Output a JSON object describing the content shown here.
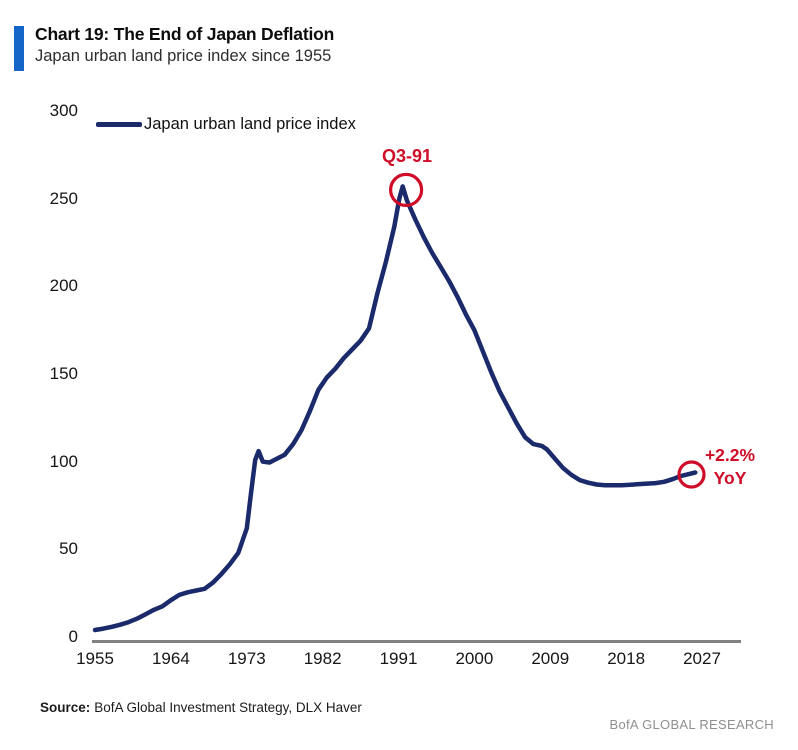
{
  "header": {
    "title": "Chart 19: The End of Japan Deflation",
    "subtitle": "Japan urban land price index since 1955"
  },
  "legend": {
    "label": "Japan urban land price index"
  },
  "callouts": {
    "peak_label": "Q3-91",
    "latest_line1": "+2.2%",
    "latest_line2": "YoY"
  },
  "footer": {
    "source_label": "Source:",
    "source_text": "BofA Global Investment Strategy, DLX Haver",
    "branding": "BofA GLOBAL RESEARCH"
  },
  "colors": {
    "line": "#1b2a6b",
    "accent_red": "#cf0d28",
    "header_bar_blue": "#1565c8",
    "axis_gray": "#828282"
  },
  "chart_data": {
    "type": "line",
    "title": "Chart 19: The End of Japan Deflation",
    "subtitle": "Japan urban land price index since 1955",
    "xlabel": "",
    "ylabel": "",
    "xlim": [
      1955,
      2027
    ],
    "ylim": [
      0,
      300
    ],
    "x_ticks": [
      1955,
      1964,
      1973,
      1982,
      1991,
      2000,
      2009,
      2018,
      2027
    ],
    "y_ticks": [
      0,
      50,
      100,
      150,
      200,
      250,
      300
    ],
    "grid": false,
    "legend_position": "top-left",
    "series": [
      {
        "name": "Japan urban land price index",
        "points": [
          [
            1955,
            4
          ],
          [
            1956,
            4.8
          ],
          [
            1957,
            5.8
          ],
          [
            1958,
            7
          ],
          [
            1959,
            8.5
          ],
          [
            1960,
            10.5
          ],
          [
            1961,
            13
          ],
          [
            1962,
            15.5
          ],
          [
            1963,
            17.5
          ],
          [
            1964,
            21
          ],
          [
            1965,
            24
          ],
          [
            1966,
            25.5
          ],
          [
            1967,
            26.5
          ],
          [
            1968,
            27.5
          ],
          [
            1969,
            31
          ],
          [
            1970,
            36
          ],
          [
            1971,
            41.5
          ],
          [
            1972,
            48
          ],
          [
            1973,
            62
          ],
          [
            1973.5,
            82
          ],
          [
            1974,
            101
          ],
          [
            1974.4,
            106
          ],
          [
            1974.9,
            100
          ],
          [
            1975.7,
            99.5
          ],
          [
            1976.5,
            101.5
          ],
          [
            1977.5,
            104
          ],
          [
            1978.5,
            110
          ],
          [
            1979.5,
            118
          ],
          [
            1980.5,
            129
          ],
          [
            1981.5,
            141
          ],
          [
            1982.5,
            148
          ],
          [
            1983.5,
            153
          ],
          [
            1984.5,
            159
          ],
          [
            1985.5,
            164
          ],
          [
            1986.5,
            169
          ],
          [
            1987.5,
            176
          ],
          [
            1988.5,
            196
          ],
          [
            1989.5,
            214
          ],
          [
            1990.5,
            234
          ],
          [
            1991.1,
            250
          ],
          [
            1991.5,
            257
          ],
          [
            1992,
            249
          ],
          [
            1993,
            238
          ],
          [
            1994,
            228
          ],
          [
            1995,
            219
          ],
          [
            1996,
            211
          ],
          [
            1997,
            203
          ],
          [
            1998,
            194
          ],
          [
            1999,
            184
          ],
          [
            2000,
            175
          ],
          [
            2001,
            163
          ],
          [
            2002,
            151
          ],
          [
            2003,
            140
          ],
          [
            2004,
            131
          ],
          [
            2005,
            122
          ],
          [
            2006,
            114
          ],
          [
            2007,
            110
          ],
          [
            2008,
            109
          ],
          [
            2008.6,
            107
          ],
          [
            2009.5,
            102
          ],
          [
            2010.5,
            96.5
          ],
          [
            2011.5,
            92.5
          ],
          [
            2012.5,
            89.5
          ],
          [
            2013.5,
            88
          ],
          [
            2014.5,
            87
          ],
          [
            2015.5,
            86.5
          ],
          [
            2016.5,
            86.5
          ],
          [
            2017.5,
            86.5
          ],
          [
            2018.5,
            86.8
          ],
          [
            2019.5,
            87.2
          ],
          [
            2020.5,
            87.5
          ],
          [
            2021.5,
            87.8
          ],
          [
            2022.5,
            88.5
          ],
          [
            2023.5,
            90
          ],
          [
            2024.5,
            91.8
          ],
          [
            2025.5,
            93
          ],
          [
            2026.2,
            93.8
          ]
        ]
      }
    ],
    "annotations": [
      {
        "id": "peak",
        "label": "Q3-91",
        "year": 1991.9,
        "value": 255
      },
      {
        "id": "latest",
        "label": "+2.2% YoY",
        "year": 2025.75,
        "value": 92.7
      }
    ]
  }
}
